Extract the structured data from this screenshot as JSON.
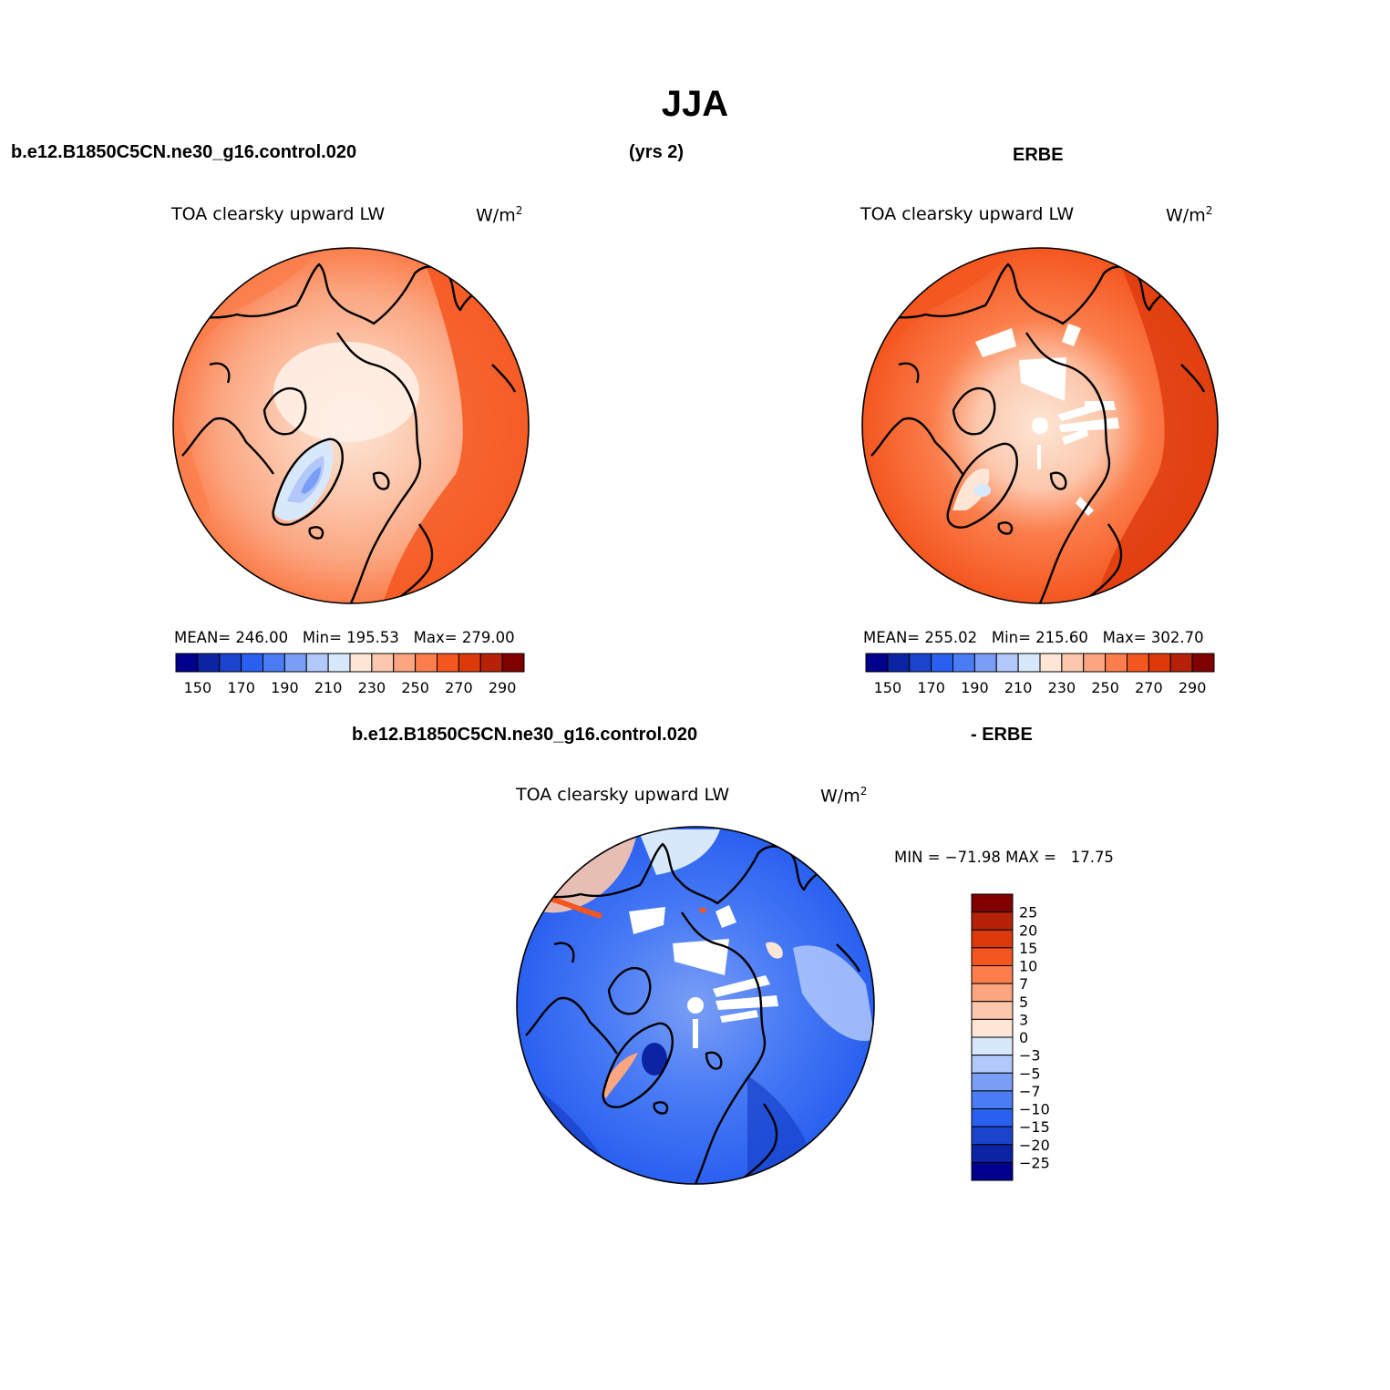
{
  "title": "JJA",
  "left_case": "b.e12.B1850C5CN.ne30_g16.control.020",
  "years": "(yrs 2)",
  "right_case": "ERBE",
  "diff_case_a": "b.e12.B1850C5CN.ne30_g16.control.020",
  "diff_case_b": "- ERBE",
  "panels": [
    {
      "id": "model",
      "variable": "TOA clearsky upward LW",
      "units": "W/m",
      "units_exp": "2",
      "stats": "MEAN= 246.00   Min= 195.53   Max= 279.00"
    },
    {
      "id": "obs",
      "variable": "TOA clearsky upward LW",
      "units": "W/m",
      "units_exp": "2",
      "stats": "MEAN= 255.02   Min= 215.60   Max= 302.70"
    },
    {
      "id": "diff",
      "variable": "TOA clearsky upward LW",
      "units": "W/m",
      "units_exp": "2",
      "stats": "MIN = −71.98 MAX =   17.75"
    }
  ],
  "abs_colorbar": {
    "colors": [
      "#00008c",
      "#0b24a4",
      "#1a44cc",
      "#2a60f0",
      "#4a7cf5",
      "#7a9ef5",
      "#b2c8fb",
      "#d8e8fb",
      "#fde6d5",
      "#fcc8ad",
      "#fba681",
      "#fb7e4c",
      "#f4561f",
      "#dd3a0c",
      "#b52208",
      "#800000"
    ],
    "tick_labels": [
      "150",
      "170",
      "190",
      "210",
      "230",
      "250",
      "270",
      "290"
    ]
  },
  "diff_colorbar": {
    "colors": [
      "#800000",
      "#b52208",
      "#dd3a0c",
      "#f4561f",
      "#fb7e4c",
      "#fba681",
      "#fcc8ad",
      "#fde6d5",
      "#d8e8fb",
      "#b2c8fb",
      "#7a9ef5",
      "#4a7cf5",
      "#2a60f0",
      "#1a44cc",
      "#0b24a4",
      "#00008c"
    ],
    "tick_labels": [
      "25",
      "20",
      "15",
      "10",
      "7",
      "5",
      "3",
      "0",
      "−3",
      "−5",
      "−7",
      "−10",
      "−15",
      "−20",
      "−25"
    ]
  }
}
